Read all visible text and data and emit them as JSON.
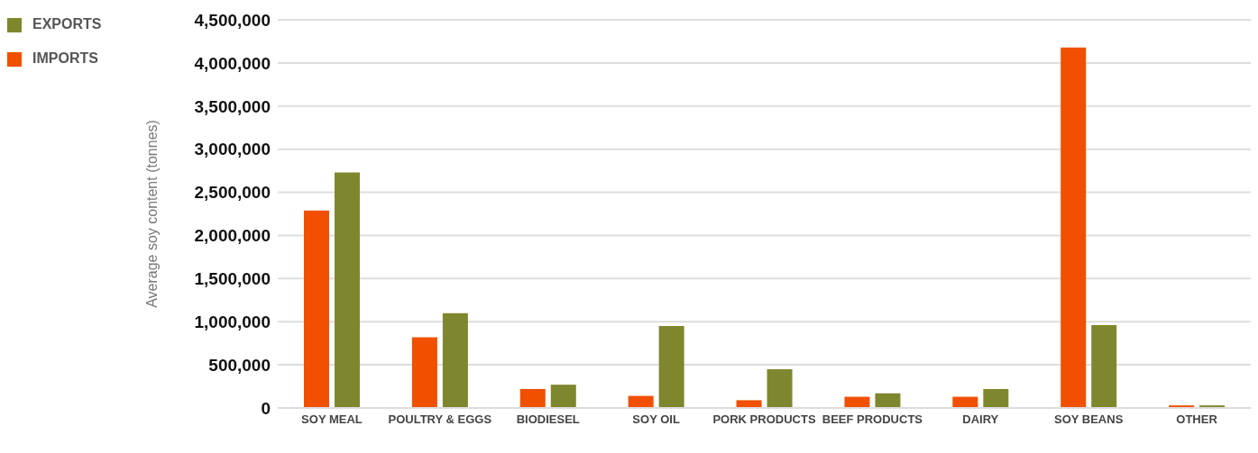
{
  "chart_data": {
    "type": "bar",
    "ylabel": "Average soy content (tonnes)",
    "categories": [
      "SOY MEAL",
      "POULTRY & EGGS",
      "BIODIESEL",
      "SOY OIL",
      "PORK PRODUCTS",
      "BEEF PRODUCTS",
      "DAIRY",
      "SOY BEANS",
      "OTHER"
    ],
    "series": [
      {
        "name": "IMPORTS",
        "color": "#f05000",
        "values": [
          2290000,
          820000,
          220000,
          140000,
          90000,
          130000,
          130000,
          4180000,
          30000
        ]
      },
      {
        "name": "EXPORTS",
        "color": "#7f872e",
        "values": [
          2730000,
          1100000,
          270000,
          950000,
          450000,
          170000,
          220000,
          960000,
          30000
        ]
      }
    ],
    "ylim": [
      0,
      4500000
    ],
    "yticks": [
      0,
      {
        "value": 500000,
        "label": "500,000"
      },
      {
        "value": 1000000,
        "label": "1,000,000"
      },
      {
        "value": 1500000,
        "label": "1,500,000"
      },
      {
        "value": 2000000,
        "label": "2,000,000"
      },
      {
        "value": 2500000,
        "label": "2,500,000"
      },
      {
        "value": 3000000,
        "label": "3,000,000"
      },
      {
        "value": 3500000,
        "label": "3,500,000"
      },
      {
        "value": 4000000,
        "label": "4,000,000"
      },
      {
        "value": 4500000,
        "label": "4,500,000"
      }
    ],
    "grid": "y",
    "legend": "top left"
  }
}
